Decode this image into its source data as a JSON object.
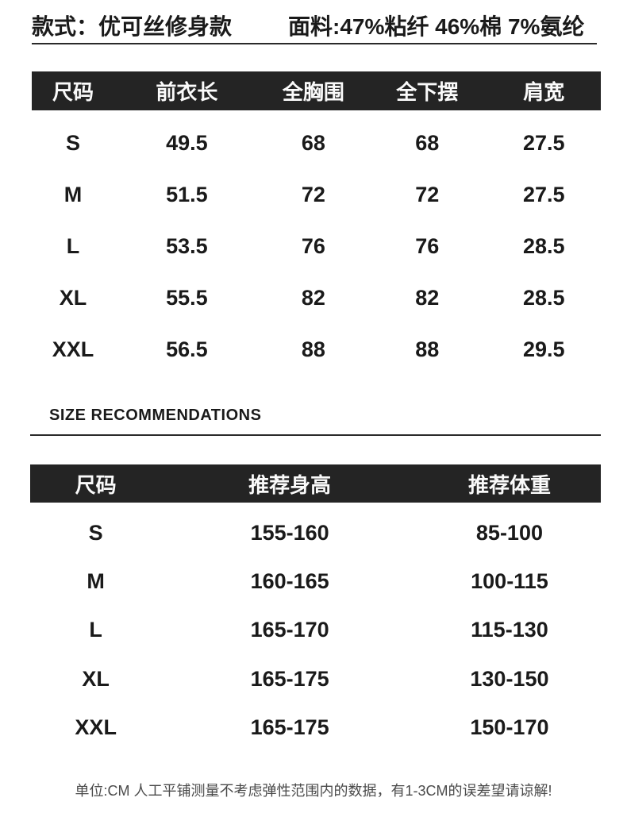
{
  "header": {
    "style_label": "款式：",
    "style_value": "优可丝修身款",
    "fabric_label": "面料:",
    "fabric_value": "47%粘纤 46%棉 7%氨纶"
  },
  "measure_table": {
    "columns": [
      "尺码",
      "前衣长",
      "全胸围",
      "全下摆",
      "肩宽"
    ],
    "rows": [
      {
        "size": "S",
        "front_length": "49.5",
        "bust": "68",
        "hem": "68",
        "shoulder": "27.5"
      },
      {
        "size": "M",
        "front_length": "51.5",
        "bust": "72",
        "hem": "72",
        "shoulder": "27.5"
      },
      {
        "size": "L",
        "front_length": "53.5",
        "bust": "76",
        "hem": "76",
        "shoulder": "28.5"
      },
      {
        "size": "XL",
        "front_length": "55.5",
        "bust": "82",
        "hem": "82",
        "shoulder": "28.5"
      },
      {
        "size": "XXL",
        "front_length": "56.5",
        "bust": "88",
        "hem": "88",
        "shoulder": "29.5"
      }
    ]
  },
  "recommendations": {
    "heading": "SIZE RECOMMENDATIONS",
    "columns": [
      "尺码",
      "推荐身高",
      "推荐体重"
    ],
    "rows": [
      {
        "size": "S",
        "height": "155-160",
        "weight": "85-100"
      },
      {
        "size": "M",
        "height": "160-165",
        "weight": "100-115"
      },
      {
        "size": "L",
        "height": "165-170",
        "weight": "115-130"
      },
      {
        "size": "XL",
        "height": "165-175",
        "weight": "130-150"
      },
      {
        "size": "XXL",
        "height": "165-175",
        "weight": "150-170"
      }
    ]
  },
  "footnote": "单位:CM 人工平铺测量不考虑弹性范围内的数据，有1-3CM的误差望请谅解!",
  "colors": {
    "header_bar": "#242424",
    "text": "#1a1a1a",
    "footnote_text": "#4a4a4a",
    "header_text": "#fafafa"
  }
}
